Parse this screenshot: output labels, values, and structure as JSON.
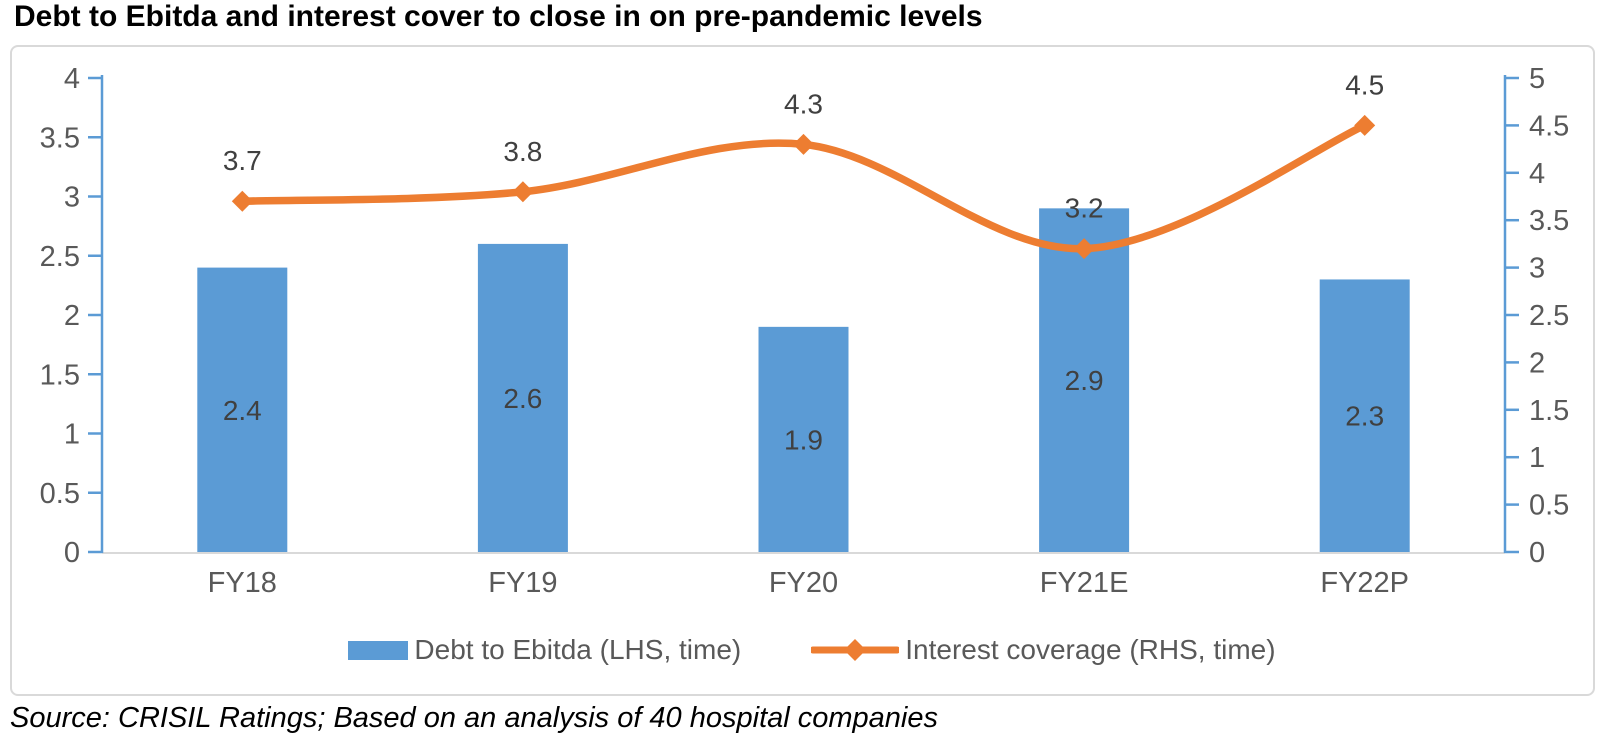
{
  "title": "Debt to Ebitda and interest cover to close in on pre-pandemic levels",
  "source": "Source: CRISIL Ratings; Based on an analysis of 40 hospital companies",
  "colors": {
    "bar": "#5B9BD5",
    "line": "#ED7D31",
    "axis": "#5B9BD5",
    "baseline": "#D9D9D9",
    "data_label": "#404040",
    "tick_label": "#595959"
  },
  "chart_data": {
    "type": "bar",
    "subtype": "combo-bar-line-dual-axis",
    "categories": [
      "FY18",
      "FY19",
      "FY20",
      "FY21E",
      "FY22P"
    ],
    "series": [
      {
        "name": "Debt to Ebitda (LHS, time)",
        "type": "bar",
        "axis": "left",
        "values": [
          2.4,
          2.6,
          1.9,
          2.9,
          2.3
        ],
        "labels": [
          "2.4",
          "2.6",
          "1.9",
          "2.9",
          "2.3"
        ]
      },
      {
        "name": "Interest coverage (RHS, time)",
        "type": "line",
        "axis": "right",
        "values": [
          3.7,
          3.8,
          4.3,
          3.2,
          4.5
        ],
        "labels": [
          "3.7",
          "3.8",
          "4.3",
          "3.2",
          "4.5"
        ]
      }
    ],
    "left_axis": {
      "min": 0,
      "max": 4,
      "step": 0.5,
      "tick_labels": [
        "0",
        "0.5",
        "1",
        "1.5",
        "2",
        "2.5",
        "3",
        "3.5",
        "4"
      ]
    },
    "right_axis": {
      "min": 0,
      "max": 5,
      "step": 0.5,
      "tick_labels": [
        "0",
        "0.5",
        "1",
        "1.5",
        "2",
        "2.5",
        "3",
        "3.5",
        "4",
        "4.5",
        "5"
      ]
    },
    "legend_position": "bottom",
    "grid": false,
    "smooth_line": true
  },
  "legend": {
    "items": [
      {
        "label": "Debt to Ebitda (LHS, time)",
        "swatch": "bar"
      },
      {
        "label": "Interest coverage (RHS, time)",
        "swatch": "line"
      }
    ]
  }
}
